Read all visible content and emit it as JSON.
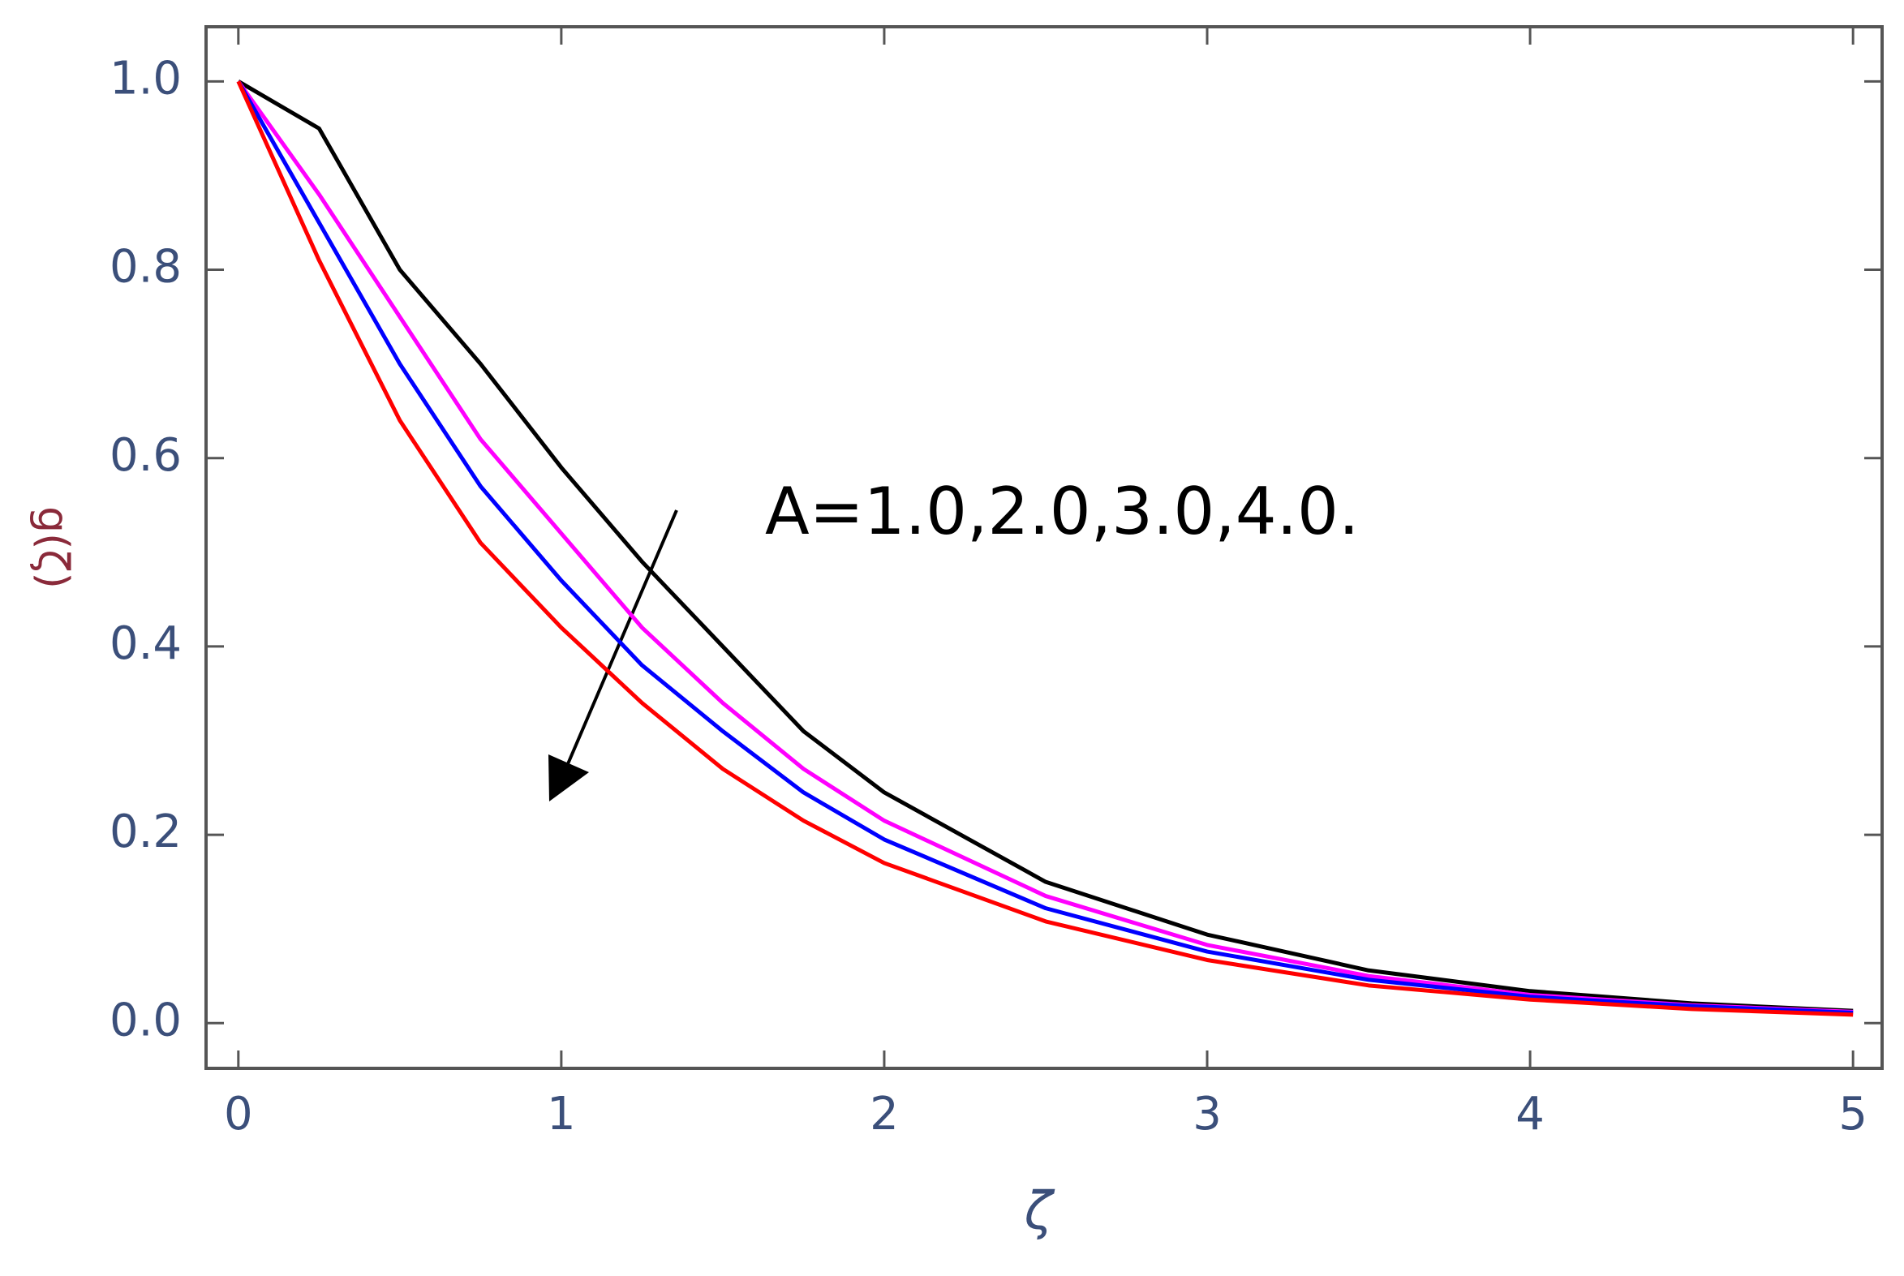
{
  "chart_data": {
    "type": "line",
    "x_label": "ζ",
    "y_label": "g(ζ)",
    "annotation": "A=1.0,2.0,3.0,4.0.",
    "x": [
      0,
      0.25,
      0.5,
      0.75,
      1,
      1.25,
      1.5,
      1.75,
      2,
      2.5,
      3,
      3.5,
      4,
      4.5,
      5
    ],
    "series": [
      {
        "color": "#000000",
        "values": [
          1,
          0.95,
          0.8,
          0.7,
          0.59,
          0.49,
          0.4,
          0.31,
          0.245,
          0.15,
          0.094,
          0.056,
          0.034,
          0.021,
          0.013
        ]
      },
      {
        "color": "#ff00ff",
        "values": [
          1,
          0.88,
          0.75,
          0.62,
          0.52,
          0.42,
          0.34,
          0.27,
          0.215,
          0.135,
          0.083,
          0.05,
          0.03,
          0.019,
          0.012
        ]
      },
      {
        "color": "#0000ff",
        "values": [
          1,
          0.85,
          0.7,
          0.57,
          0.47,
          0.38,
          0.31,
          0.245,
          0.195,
          0.122,
          0.076,
          0.046,
          0.028,
          0.018,
          0.011
        ]
      },
      {
        "color": "#ff0000",
        "values": [
          1,
          0.81,
          0.64,
          0.51,
          0.42,
          0.34,
          0.27,
          0.215,
          0.17,
          0.108,
          0.067,
          0.04,
          0.025,
          0.015,
          0.009
        ]
      }
    ],
    "xlim": [
      -0.1,
      5.09
    ],
    "ylim": [
      -0.048,
      1.058
    ],
    "xticks": [
      0,
      1,
      2,
      3,
      4,
      5
    ],
    "yticks": [
      {
        "value": 0,
        "label": "0.0"
      },
      0.2,
      0.4,
      0.6,
      0.8,
      {
        "value": 1,
        "label": "1.0"
      }
    ]
  }
}
